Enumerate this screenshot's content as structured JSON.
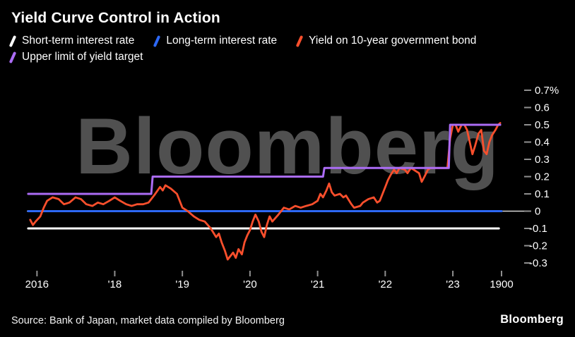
{
  "title": "Yield Curve Control in Action",
  "watermark": "Bloomberg",
  "legend": [
    {
      "label": "Short-term interest rate",
      "color": "#ffffff"
    },
    {
      "label": "Long-term interest rate",
      "color": "#2d68f5"
    },
    {
      "label": "Yield on 10-year government bond",
      "color": "#fa4f2c"
    },
    {
      "label": "Upper limit of yield target",
      "color": "#ab6cf5"
    }
  ],
  "footer": {
    "source": "Source: Bank of Japan, market data compiled by Bloomberg",
    "logo": "Bloomberg"
  },
  "chart_data": {
    "type": "line",
    "title": "Yield Curve Control in Action",
    "x_range": [
      2016.7,
      2023.72
    ],
    "y_range": [
      -0.3,
      0.7
    ],
    "grid": "off",
    "legend_position": "top",
    "axis_color": "#8f8f8f",
    "label_color": "#ffffff",
    "zero_line": {
      "value": 0,
      "color": "#d9d9d9"
    },
    "x_ticks": [
      {
        "label": "2016",
        "x": 2016.85
      },
      {
        "label": "'18",
        "x": 2018
      },
      {
        "label": "'19",
        "x": 2019
      },
      {
        "label": "'20",
        "x": 2020
      },
      {
        "label": "'21",
        "x": 2021
      },
      {
        "label": "'22",
        "x": 2022
      },
      {
        "label": "'23",
        "x": 2023
      },
      {
        "label": "1900",
        "x": 2023.72
      }
    ],
    "y_ticks": [
      {
        "label": "0.7%",
        "v": 0.7
      },
      {
        "label": "0.6",
        "v": 0.6
      },
      {
        "label": "0.5",
        "v": 0.5
      },
      {
        "label": "0.4",
        "v": 0.4
      },
      {
        "label": "0.3",
        "v": 0.3
      },
      {
        "label": "0.2",
        "v": 0.2
      },
      {
        "label": "0.1",
        "v": 0.1
      },
      {
        "label": "0",
        "v": 0
      },
      {
        "label": "-0.1",
        "v": -0.1
      },
      {
        "label": "-0.2",
        "v": -0.2
      },
      {
        "label": "-0.3",
        "v": -0.3
      }
    ],
    "series": [
      {
        "name": "Short-term interest rate",
        "color": "#ffffff",
        "width": 3,
        "points": [
          [
            2016.72,
            -0.1
          ],
          [
            2023.68,
            -0.1
          ]
        ]
      },
      {
        "name": "Long-term interest rate",
        "color": "#2d68f5",
        "width": 3,
        "points": [
          [
            2016.72,
            0
          ],
          [
            2023.72,
            0
          ]
        ]
      },
      {
        "name": "Yield on 10-year government bond",
        "color": "#fa4f2c",
        "width": 2.8,
        "points": [
          [
            2016.75,
            -0.05
          ],
          [
            2016.79,
            -0.08
          ],
          [
            2016.83,
            -0.06
          ],
          [
            2016.9,
            -0.03
          ],
          [
            2016.95,
            0.02
          ],
          [
            2017.0,
            0.06
          ],
          [
            2017.08,
            0.08
          ],
          [
            2017.17,
            0.07
          ],
          [
            2017.25,
            0.04
          ],
          [
            2017.33,
            0.05
          ],
          [
            2017.42,
            0.08
          ],
          [
            2017.5,
            0.07
          ],
          [
            2017.58,
            0.04
          ],
          [
            2017.67,
            0.03
          ],
          [
            2017.75,
            0.05
          ],
          [
            2017.83,
            0.04
          ],
          [
            2017.92,
            0.06
          ],
          [
            2018.0,
            0.08
          ],
          [
            2018.08,
            0.06
          ],
          [
            2018.17,
            0.04
          ],
          [
            2018.25,
            0.03
          ],
          [
            2018.33,
            0.04
          ],
          [
            2018.42,
            0.04
          ],
          [
            2018.5,
            0.05
          ],
          [
            2018.58,
            0.09
          ],
          [
            2018.67,
            0.14
          ],
          [
            2018.71,
            0.12
          ],
          [
            2018.75,
            0.15
          ],
          [
            2018.83,
            0.13
          ],
          [
            2018.92,
            0.1
          ],
          [
            2019.0,
            0.02
          ],
          [
            2019.08,
            0.0
          ],
          [
            2019.17,
            -0.03
          ],
          [
            2019.25,
            -0.05
          ],
          [
            2019.33,
            -0.06
          ],
          [
            2019.42,
            -0.1
          ],
          [
            2019.5,
            -0.15
          ],
          [
            2019.54,
            -0.13
          ],
          [
            2019.58,
            -0.18
          ],
          [
            2019.63,
            -0.23
          ],
          [
            2019.67,
            -0.28
          ],
          [
            2019.75,
            -0.24
          ],
          [
            2019.79,
            -0.27
          ],
          [
            2019.83,
            -0.22
          ],
          [
            2019.88,
            -0.25
          ],
          [
            2019.92,
            -0.18
          ],
          [
            2019.96,
            -0.14
          ],
          [
            2020.0,
            -0.11
          ],
          [
            2020.04,
            -0.06
          ],
          [
            2020.08,
            -0.02
          ],
          [
            2020.13,
            -0.06
          ],
          [
            2020.17,
            -0.12
          ],
          [
            2020.21,
            -0.15
          ],
          [
            2020.25,
            -0.08
          ],
          [
            2020.29,
            -0.03
          ],
          [
            2020.33,
            -0.06
          ],
          [
            2020.42,
            -0.02
          ],
          [
            2020.5,
            0.02
          ],
          [
            2020.58,
            0.01
          ],
          [
            2020.67,
            0.03
          ],
          [
            2020.75,
            0.02
          ],
          [
            2020.83,
            0.03
          ],
          [
            2020.92,
            0.04
          ],
          [
            2021.0,
            0.06
          ],
          [
            2021.04,
            0.1
          ],
          [
            2021.08,
            0.08
          ],
          [
            2021.13,
            0.12
          ],
          [
            2021.17,
            0.16
          ],
          [
            2021.21,
            0.11
          ],
          [
            2021.25,
            0.09
          ],
          [
            2021.33,
            0.1
          ],
          [
            2021.38,
            0.08
          ],
          [
            2021.42,
            0.09
          ],
          [
            2021.5,
            0.04
          ],
          [
            2021.54,
            0.02
          ],
          [
            2021.63,
            0.03
          ],
          [
            2021.67,
            0.05
          ],
          [
            2021.75,
            0.07
          ],
          [
            2021.83,
            0.08
          ],
          [
            2021.88,
            0.05
          ],
          [
            2021.92,
            0.06
          ],
          [
            2022.0,
            0.14
          ],
          [
            2022.04,
            0.18
          ],
          [
            2022.08,
            0.21
          ],
          [
            2022.13,
            0.24
          ],
          [
            2022.17,
            0.22
          ],
          [
            2022.21,
            0.25
          ],
          [
            2022.29,
            0.24
          ],
          [
            2022.33,
            0.22
          ],
          [
            2022.38,
            0.25
          ],
          [
            2022.42,
            0.24
          ],
          [
            2022.46,
            0.23
          ],
          [
            2022.5,
            0.22
          ],
          [
            2022.54,
            0.17
          ],
          [
            2022.58,
            0.2
          ],
          [
            2022.63,
            0.24
          ],
          [
            2022.67,
            0.25
          ],
          [
            2022.75,
            0.25
          ],
          [
            2022.83,
            0.25
          ],
          [
            2022.92,
            0.25
          ],
          [
            2022.96,
            0.42
          ],
          [
            2023.0,
            0.5
          ],
          [
            2023.04,
            0.5
          ],
          [
            2023.08,
            0.46
          ],
          [
            2023.13,
            0.5
          ],
          [
            2023.17,
            0.5
          ],
          [
            2023.21,
            0.47
          ],
          [
            2023.25,
            0.4
          ],
          [
            2023.29,
            0.33
          ],
          [
            2023.33,
            0.38
          ],
          [
            2023.38,
            0.45
          ],
          [
            2023.42,
            0.47
          ],
          [
            2023.46,
            0.35
          ],
          [
            2023.5,
            0.33
          ],
          [
            2023.54,
            0.4
          ],
          [
            2023.58,
            0.44
          ],
          [
            2023.63,
            0.47
          ],
          [
            2023.67,
            0.5
          ],
          [
            2023.7,
            0.51
          ]
        ]
      },
      {
        "name": "Upper limit of yield target",
        "color": "#ab6cf5",
        "width": 3,
        "points": [
          [
            2016.72,
            0.1
          ],
          [
            2018.54,
            0.1
          ],
          [
            2018.56,
            0.2
          ],
          [
            2021.08,
            0.2
          ],
          [
            2021.1,
            0.25
          ],
          [
            2022.94,
            0.25
          ],
          [
            2022.96,
            0.5
          ],
          [
            2023.7,
            0.5
          ]
        ]
      }
    ]
  }
}
